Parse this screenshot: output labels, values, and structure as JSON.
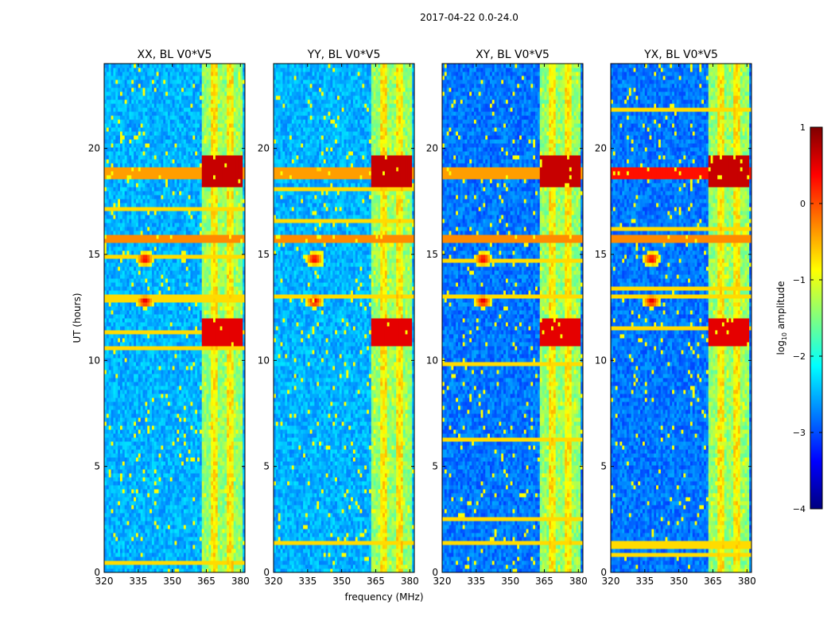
{
  "chart_data": {
    "type": "heatmap",
    "suptitle": "2017-04-22 0.0-24.0",
    "xlabel": "frequency (MHz)",
    "ylabel": "UT (hours)",
    "xlim": [
      320,
      382
    ],
    "ylim": [
      0,
      24
    ],
    "xticks": [
      "320",
      "335",
      "350",
      "365",
      "380"
    ],
    "xtick_values": [
      320,
      335,
      350,
      365,
      380
    ],
    "yticks": [
      "0",
      "5",
      "10",
      "15",
      "20"
    ],
    "ytick_values": [
      0,
      5,
      10,
      15,
      20
    ],
    "panels": [
      {
        "title": "XX, BL V0*V5"
      },
      {
        "title": "YY, BL V0*V5"
      },
      {
        "title": "XY, BL V0*V5"
      },
      {
        "title": "YX, BL V0*V5"
      }
    ],
    "colorbar": {
      "label": "log10 amplitude",
      "label_main": "log",
      "label_sub": "10",
      "label_rest": " amplitude",
      "colormap": "jet",
      "range": [
        -4,
        1
      ],
      "ticks": [
        "1",
        "0",
        "−1",
        "−2",
        "−3",
        "−4"
      ],
      "tick_values": [
        1,
        0,
        -1,
        -2,
        -3,
        -4
      ]
    },
    "features": {
      "strong_band_mhz": [
        363,
        381
      ],
      "bright_rows_ut": [
        18.9,
        11.3
      ],
      "flag_band_ut": [
        15.5,
        16.0
      ],
      "blob_rows_ut": [
        14.8,
        12.8
      ],
      "blob_freq_mhz": 338
    }
  }
}
